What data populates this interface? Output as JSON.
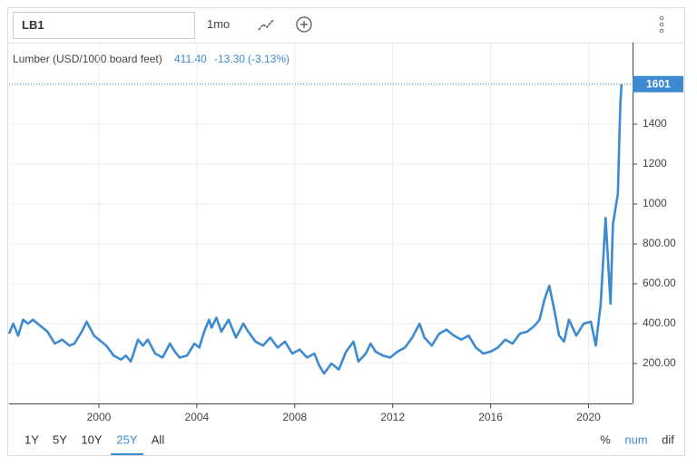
{
  "header": {
    "symbol": "LB1",
    "period": "1mo"
  },
  "quote": {
    "name": "Lumber (USD/1000 board feet)",
    "last": "411.40",
    "change": "-13.30",
    "change_pct": "(-3.13%)"
  },
  "ranges": [
    "1Y",
    "5Y",
    "10Y",
    "25Y",
    "All"
  ],
  "active_range": 3,
  "modes": [
    "%",
    "num",
    "dif"
  ],
  "active_mode": 1,
  "chart_data": {
    "type": "line",
    "grid": true,
    "x": [
      1996.33,
      1996.5,
      1996.7,
      1996.9,
      1997.1,
      1997.3,
      1997.6,
      1997.9,
      1998.2,
      1998.5,
      1998.8,
      1999.0,
      1999.3,
      1999.5,
      1999.8,
      2000.0,
      2000.3,
      2000.6,
      2000.9,
      2001.1,
      2001.3,
      2001.6,
      2001.8,
      2002.0,
      2002.3,
      2002.6,
      2002.9,
      2003.1,
      2003.3,
      2003.6,
      2003.9,
      2004.1,
      2004.3,
      2004.5,
      2004.6,
      2004.8,
      2005.0,
      2005.3,
      2005.6,
      2005.9,
      2006.1,
      2006.4,
      2006.7,
      2007.0,
      2007.3,
      2007.6,
      2007.9,
      2008.2,
      2008.5,
      2008.8,
      2009.0,
      2009.2,
      2009.5,
      2009.8,
      2010.1,
      2010.4,
      2010.6,
      2010.9,
      2011.1,
      2011.3,
      2011.6,
      2011.9,
      2012.2,
      2012.5,
      2012.8,
      2013.1,
      2013.3,
      2013.6,
      2013.9,
      2014.2,
      2014.5,
      2014.8,
      2015.1,
      2015.4,
      2015.7,
      2016.0,
      2016.3,
      2016.6,
      2016.9,
      2017.2,
      2017.5,
      2017.8,
      2018.0,
      2018.2,
      2018.4,
      2018.6,
      2018.8,
      2019.0,
      2019.2,
      2019.5,
      2019.8,
      2020.1,
      2020.3,
      2020.5,
      2020.7,
      2020.9,
      2021.0,
      2021.2,
      2021.3,
      2021.35
    ],
    "series": [
      {
        "name": "Lumber",
        "color": "#3d8ad0",
        "values": [
          350,
          400,
          340,
          420,
          400,
          420,
          390,
          360,
          300,
          320,
          290,
          300,
          360,
          410,
          340,
          320,
          290,
          240,
          220,
          240,
          210,
          320,
          290,
          320,
          250,
          230,
          300,
          260,
          230,
          240,
          300,
          280,
          360,
          420,
          380,
          430,
          360,
          420,
          330,
          400,
          360,
          310,
          290,
          330,
          280,
          310,
          250,
          270,
          230,
          250,
          190,
          150,
          200,
          170,
          260,
          310,
          210,
          250,
          300,
          260,
          240,
          230,
          260,
          280,
          330,
          400,
          330,
          290,
          350,
          370,
          340,
          320,
          340,
          280,
          250,
          260,
          280,
          320,
          300,
          350,
          360,
          390,
          420,
          520,
          590,
          470,
          340,
          310,
          420,
          340,
          400,
          410,
          290,
          500,
          930,
          500,
          900,
          1050,
          1500,
          1601
        ]
      }
    ],
    "xlim": [
      1996.33,
      2021.8
    ],
    "xticks": [
      2000,
      2004,
      2008,
      2012,
      2016,
      2020
    ],
    "ylim": [
      0,
      1800
    ],
    "yticks": [
      {
        "value": 200,
        "label": "200.00"
      },
      {
        "value": 400,
        "label": "400.00"
      },
      {
        "value": 600,
        "label": "600.00"
      },
      {
        "value": 800,
        "label": "800.00"
      },
      1000,
      1200,
      1400
    ]
  }
}
